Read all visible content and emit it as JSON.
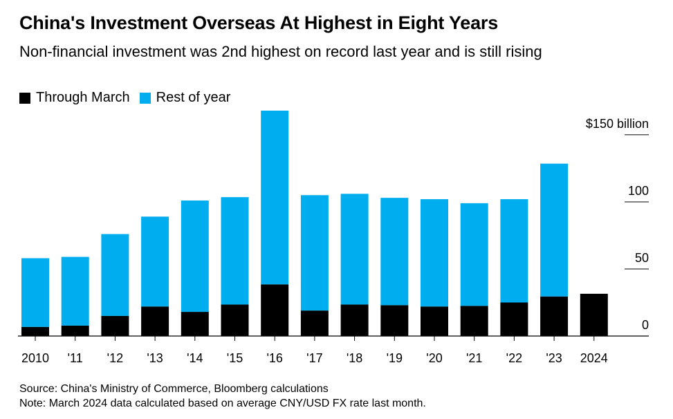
{
  "title": "China's Investment Overseas At Highest in Eight Years",
  "subtitle": "Non-financial investment was 2nd highest on record last year and is still rising",
  "legend": [
    {
      "label": "Through March",
      "color": "#000000"
    },
    {
      "label": "Rest of year",
      "color": "#00adef"
    }
  ],
  "footer": {
    "source": "Source: China's Ministry of Commerce, Bloomberg calculations",
    "note": "Note: March 2024 data calculated based on average CNY/USD FX rate last month."
  },
  "chart_data": {
    "type": "bar",
    "stacked": true,
    "categories": [
      "2010",
      "'11",
      "'12",
      "'13",
      "'14",
      "'15",
      "'16",
      "'17",
      "'18",
      "'19",
      "'20",
      "'21",
      "'22",
      "'23",
      "2024"
    ],
    "series": [
      {
        "name": "Through March",
        "color": "#000000",
        "values": [
          6.8,
          7.8,
          15.0,
          22.0,
          18.0,
          23.5,
          38.5,
          19.0,
          23.5,
          23.0,
          22.0,
          22.5,
          25.0,
          29.5,
          31.5
        ]
      },
      {
        "name": "Rest of year",
        "color": "#00adef",
        "values": [
          51.2,
          51.2,
          61.0,
          67.0,
          83.0,
          80.0,
          129.5,
          86.0,
          82.5,
          80.0,
          80.0,
          76.5,
          77.0,
          99.0,
          0
        ]
      }
    ],
    "y_ticks": [
      "0",
      "50",
      "100",
      "$150 billion"
    ],
    "y_tick_values": [
      0,
      50,
      100,
      150
    ],
    "ylim": [
      0,
      168
    ],
    "xlabel": "",
    "ylabel": "",
    "axis_side": "right",
    "legend_position": "top-left",
    "grid": false
  }
}
